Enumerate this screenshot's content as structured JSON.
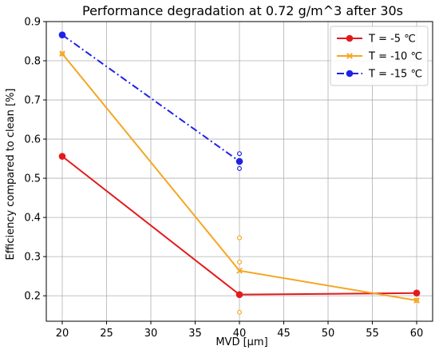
{
  "chart_data": {
    "type": "line",
    "title": "Performance degradation at 0.72 g/m^3 after 30s",
    "xlabel": "MVD [µm]",
    "ylabel": "Efficiency compared to clean [%]",
    "xlim": [
      18.2,
      61.8
    ],
    "ylim": [
      0.135,
      0.9
    ],
    "xticks": [
      20,
      25,
      30,
      35,
      40,
      45,
      50,
      55,
      60
    ],
    "yticks": [
      0.2,
      0.3,
      0.4,
      0.5,
      0.6,
      0.7,
      0.8,
      0.9
    ],
    "grid": true,
    "legend_position": "top-right",
    "series": [
      {
        "name": "T = -5 ℃",
        "color": "#e31a1c",
        "marker": "circle",
        "linestyle": "solid",
        "x": [
          20,
          40,
          60
        ],
        "y": [
          0.556,
          0.203,
          0.207
        ],
        "replicates": [
          {
            "x": 20,
            "y": [
              0.556
            ]
          },
          {
            "x": 40,
            "y": [
              0.203
            ]
          },
          {
            "x": 60,
            "y": [
              0.207
            ]
          }
        ]
      },
      {
        "name": "T = -10 ℃",
        "color": "#f5a623",
        "marker": "x",
        "linestyle": "solid",
        "x": [
          20,
          40,
          60
        ],
        "y": [
          0.818,
          0.264,
          0.188
        ],
        "replicates": [
          {
            "x": 20,
            "y": [
              0.818
            ]
          },
          {
            "x": 40,
            "y": [
              0.348,
              0.286,
              0.158
            ]
          },
          {
            "x": 60,
            "y": [
              0.188
            ]
          }
        ]
      },
      {
        "name": "T = -15 ℃",
        "color": "#1f22e6",
        "marker": "circle",
        "linestyle": "dashdot",
        "x": [
          20,
          40
        ],
        "y": [
          0.866,
          0.543
        ],
        "replicates": [
          {
            "x": 20,
            "y": [
              0.866
            ]
          },
          {
            "x": 40,
            "y": [
              0.563,
              0.525
            ]
          }
        ]
      }
    ]
  }
}
